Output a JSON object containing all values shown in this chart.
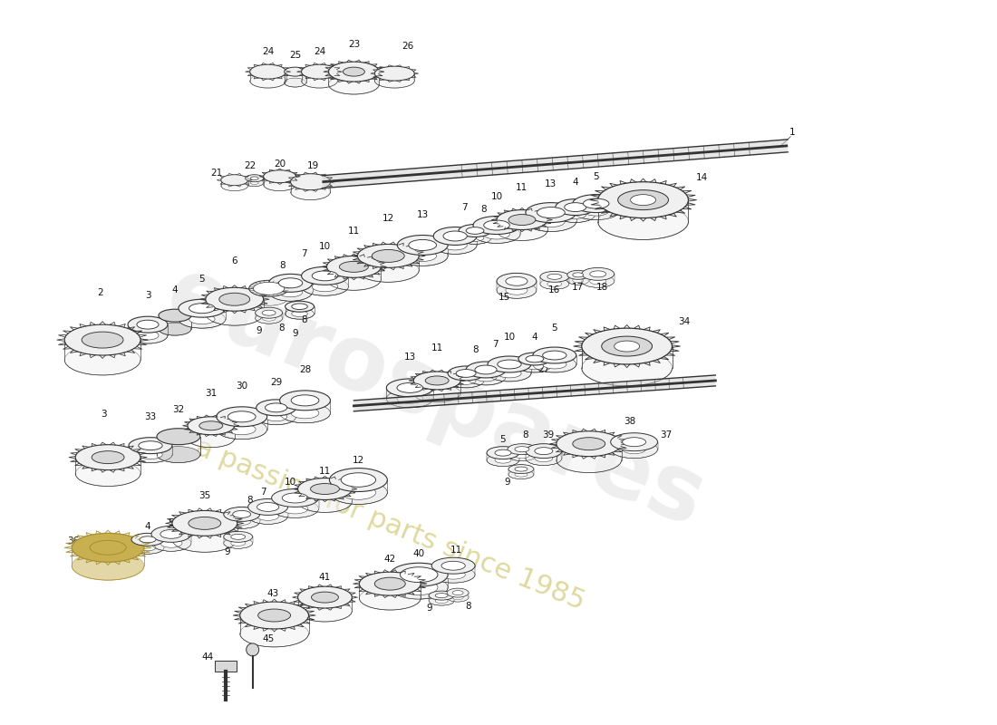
{
  "bg_color": "#ffffff",
  "line_color": "#2a2a2a",
  "gear_edge_color": "#333333",
  "shaft_color": "#444444",
  "fill_light": "#f0f0f0",
  "fill_mid": "#d8d8d8",
  "fill_dark": "#b0b0b0",
  "gold_color": "#c8b050",
  "gold_dark": "#a89030",
  "watermark_color": "#e0e0e0",
  "watermark_sub_color": "#d4cc80",
  "wm_alpha": 0.55,
  "wm_sub_alpha": 0.75
}
